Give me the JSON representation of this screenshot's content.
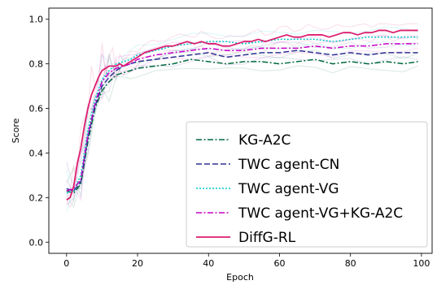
{
  "chart_data": {
    "type": "line",
    "xlabel": "Epoch",
    "ylabel": "Score",
    "xlim": [
      -5,
      103
    ],
    "ylim": [
      -0.05,
      1.05
    ],
    "xticks": [
      0,
      20,
      40,
      60,
      80,
      100
    ],
    "yticks": [
      0.0,
      0.2,
      0.4,
      0.6,
      0.8,
      1.0
    ],
    "xtick_labels": [
      "0",
      "20",
      "40",
      "60",
      "80",
      "100"
    ],
    "ytick_labels": [
      "0.0",
      "0.2",
      "0.4",
      "0.6",
      "0.8",
      "1.0"
    ],
    "grid": false,
    "legend_position": "lower right",
    "series": [
      {
        "name": "KG-A2C",
        "color": "#00693e",
        "dash": "dashdot",
        "x": [
          0,
          2,
          4,
          6,
          8,
          10,
          12,
          14,
          16,
          18,
          20,
          25,
          30,
          35,
          40,
          45,
          50,
          55,
          60,
          65,
          70,
          75,
          80,
          85,
          90,
          95,
          99
        ],
        "y": [
          0.23,
          0.22,
          0.26,
          0.45,
          0.6,
          0.68,
          0.72,
          0.75,
          0.76,
          0.77,
          0.78,
          0.79,
          0.8,
          0.82,
          0.81,
          0.8,
          0.81,
          0.81,
          0.8,
          0.81,
          0.82,
          0.8,
          0.81,
          0.8,
          0.81,
          0.8,
          0.81
        ]
      },
      {
        "name": "TWC agent-CN",
        "color": "#2e3192",
        "dash": "dashed",
        "x": [
          0,
          2,
          4,
          6,
          8,
          10,
          12,
          14,
          16,
          18,
          20,
          25,
          30,
          35,
          40,
          45,
          50,
          55,
          60,
          65,
          70,
          75,
          80,
          85,
          90,
          95,
          99
        ],
        "y": [
          0.24,
          0.23,
          0.27,
          0.47,
          0.61,
          0.7,
          0.74,
          0.77,
          0.79,
          0.8,
          0.81,
          0.82,
          0.83,
          0.84,
          0.85,
          0.83,
          0.84,
          0.85,
          0.85,
          0.86,
          0.85,
          0.84,
          0.85,
          0.84,
          0.85,
          0.85,
          0.85
        ]
      },
      {
        "name": "TWC agent-VG",
        "color": "#00c8c8",
        "dash": "dotted",
        "x": [
          0,
          2,
          4,
          6,
          8,
          10,
          12,
          14,
          16,
          18,
          20,
          25,
          30,
          35,
          40,
          45,
          50,
          55,
          60,
          65,
          70,
          75,
          80,
          85,
          90,
          95,
          99
        ],
        "y": [
          0.22,
          0.23,
          0.3,
          0.5,
          0.64,
          0.73,
          0.77,
          0.8,
          0.81,
          0.82,
          0.84,
          0.86,
          0.88,
          0.89,
          0.9,
          0.9,
          0.89,
          0.9,
          0.91,
          0.91,
          0.91,
          0.9,
          0.91,
          0.92,
          0.92,
          0.92,
          0.92
        ]
      },
      {
        "name": "TWC agent-VG+KG-A2C",
        "color": "#c800c8",
        "dash": "dashdot",
        "x": [
          0,
          2,
          4,
          6,
          8,
          10,
          12,
          14,
          16,
          18,
          20,
          25,
          30,
          35,
          40,
          45,
          50,
          55,
          60,
          65,
          70,
          75,
          80,
          85,
          90,
          95,
          99
        ],
        "y": [
          0.23,
          0.24,
          0.28,
          0.48,
          0.62,
          0.72,
          0.76,
          0.78,
          0.79,
          0.8,
          0.82,
          0.84,
          0.85,
          0.86,
          0.87,
          0.86,
          0.86,
          0.87,
          0.87,
          0.87,
          0.88,
          0.87,
          0.88,
          0.88,
          0.89,
          0.89,
          0.89
        ]
      },
      {
        "name": "DiffG-RL",
        "color": "#dc1e6e",
        "dash": "solid",
        "x": [
          0,
          1,
          2,
          3,
          4,
          5,
          6,
          7,
          8,
          9,
          10,
          11,
          12,
          13,
          14,
          15,
          16,
          17,
          18,
          19,
          20,
          22,
          24,
          26,
          28,
          30,
          32,
          34,
          36,
          38,
          40,
          42,
          44,
          46,
          48,
          50,
          52,
          54,
          56,
          58,
          60,
          62,
          64,
          66,
          68,
          70,
          72,
          74,
          76,
          78,
          80,
          82,
          84,
          86,
          88,
          90,
          92,
          94,
          96,
          98,
          99
        ],
        "y": [
          0.19,
          0.2,
          0.25,
          0.35,
          0.42,
          0.52,
          0.6,
          0.66,
          0.7,
          0.74,
          0.77,
          0.78,
          0.79,
          0.79,
          0.79,
          0.8,
          0.79,
          0.8,
          0.81,
          0.82,
          0.83,
          0.85,
          0.86,
          0.87,
          0.88,
          0.88,
          0.89,
          0.9,
          0.89,
          0.9,
          0.89,
          0.89,
          0.88,
          0.88,
          0.89,
          0.9,
          0.9,
          0.91,
          0.9,
          0.91,
          0.92,
          0.93,
          0.92,
          0.92,
          0.93,
          0.93,
          0.93,
          0.92,
          0.93,
          0.94,
          0.94,
          0.93,
          0.94,
          0.94,
          0.95,
          0.95,
          0.94,
          0.95,
          0.95,
          0.95,
          0.95
        ]
      }
    ]
  }
}
